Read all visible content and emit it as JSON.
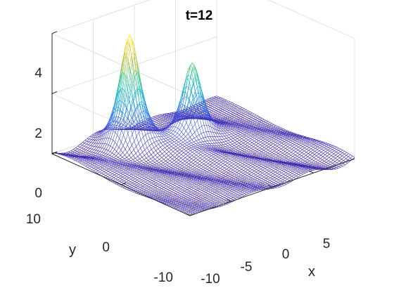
{
  "chart_data": {
    "type": "surface",
    "title": "t=12",
    "xlabel": "x",
    "ylabel": "y",
    "zlabel": "",
    "xlim": [
      -10,
      10
    ],
    "ylim": [
      -10,
      10
    ],
    "zlim": [
      0,
      4
    ],
    "xticks": [
      -10,
      -5,
      0,
      5
    ],
    "yticks": [
      -10,
      0,
      10
    ],
    "zticks": [
      0,
      2,
      4
    ],
    "grid": true,
    "colormap": "parula",
    "peaks": [
      {
        "x": -3.5,
        "y": 6.5,
        "height": 3.6
      },
      {
        "x": 2.0,
        "y": 4.0,
        "height": 2.6
      }
    ],
    "background_ripple_amplitude": 0.15
  },
  "figure": {
    "background": "#ffffff"
  }
}
